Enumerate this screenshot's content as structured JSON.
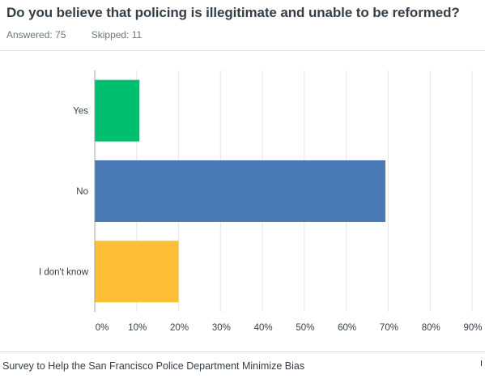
{
  "question": "Do you believe that policing is illegitimate and unable to be reformed?",
  "stats": {
    "answered": "Answered: 75",
    "skipped": "Skipped: 11"
  },
  "footer": {
    "survey_title": "Survey to Help the San Francisco Police Department Minimize Bias"
  },
  "chart_data": {
    "type": "bar",
    "orientation": "horizontal",
    "categories": [
      "Yes",
      "No",
      "I don't know"
    ],
    "values": [
      10.67,
      69.33,
      20.0
    ],
    "colors": [
      "#00bf6f",
      "#4a7ab5",
      "#fdbf36"
    ],
    "xlim": [
      0,
      90
    ],
    "xticks": [
      "0%",
      "10%",
      "20%",
      "30%",
      "40%",
      "50%",
      "60%",
      "70%",
      "80%",
      "90%"
    ],
    "grid": true
  }
}
